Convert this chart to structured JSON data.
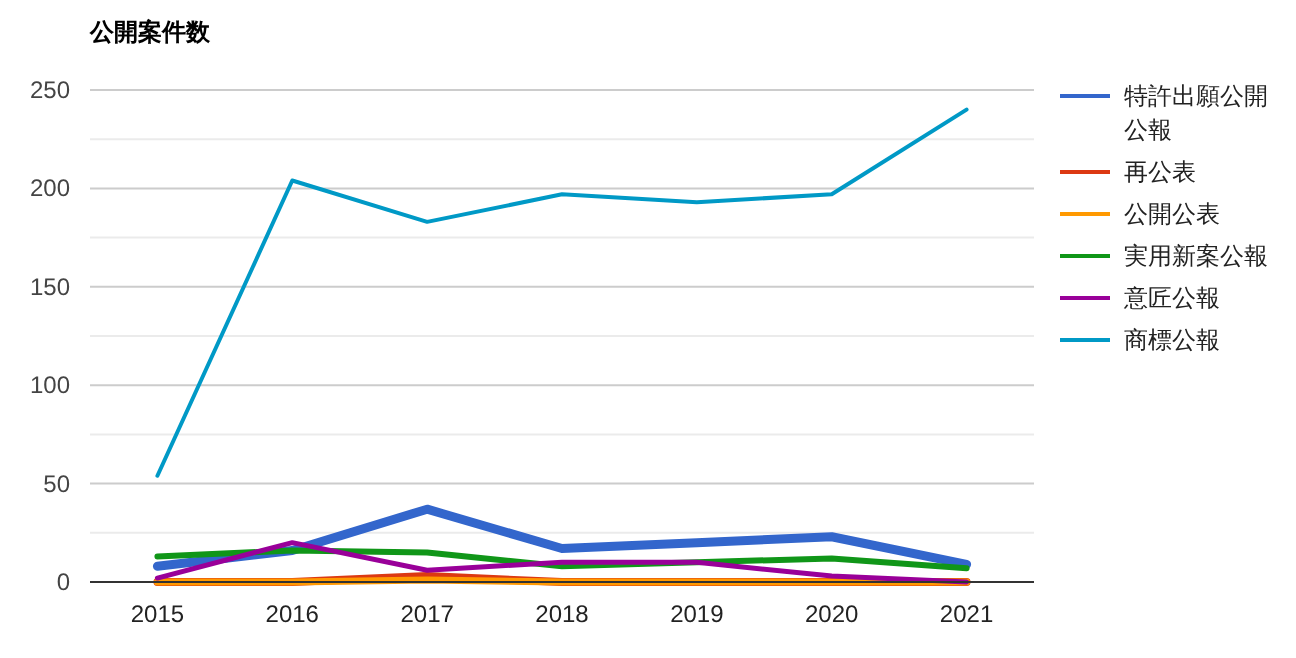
{
  "chart_data": {
    "type": "line",
    "title": "公開案件数",
    "categories": [
      "2015",
      "2016",
      "2017",
      "2018",
      "2019",
      "2020",
      "2021"
    ],
    "series": [
      {
        "name": "特許出願公開公報",
        "color": "#3366cc",
        "values": [
          8,
          16,
          37,
          17,
          20,
          23,
          9
        ]
      },
      {
        "name": "再公表",
        "color": "#dc3912",
        "values": [
          0,
          0,
          3,
          0,
          0,
          0,
          0
        ]
      },
      {
        "name": "公開公表",
        "color": "#ff9900",
        "values": [
          0,
          0,
          1,
          0,
          0,
          0,
          0
        ]
      },
      {
        "name": "実用新案公報",
        "color": "#109618",
        "values": [
          13,
          16,
          15,
          8,
          10,
          12,
          7
        ]
      },
      {
        "name": "意匠公報",
        "color": "#990099",
        "values": [
          2,
          20,
          6,
          10,
          10,
          3,
          0
        ]
      },
      {
        "name": "商標公報",
        "color": "#0099c6",
        "values": [
          54,
          204,
          183,
          197,
          193,
          197,
          240
        ]
      }
    ],
    "ylim": [
      0,
      250
    ],
    "yticks": [
      0,
      {
        "value": 25,
        "label": null
      },
      50,
      {
        "value": 75,
        "label": null
      },
      100,
      {
        "value": 125,
        "label": null
      },
      150,
      {
        "value": 175,
        "label": null
      },
      200,
      {
        "value": 225,
        "label": null
      },
      250
    ],
    "grid": "y",
    "legend": "right",
    "marker": "none",
    "line_style": "solid"
  }
}
